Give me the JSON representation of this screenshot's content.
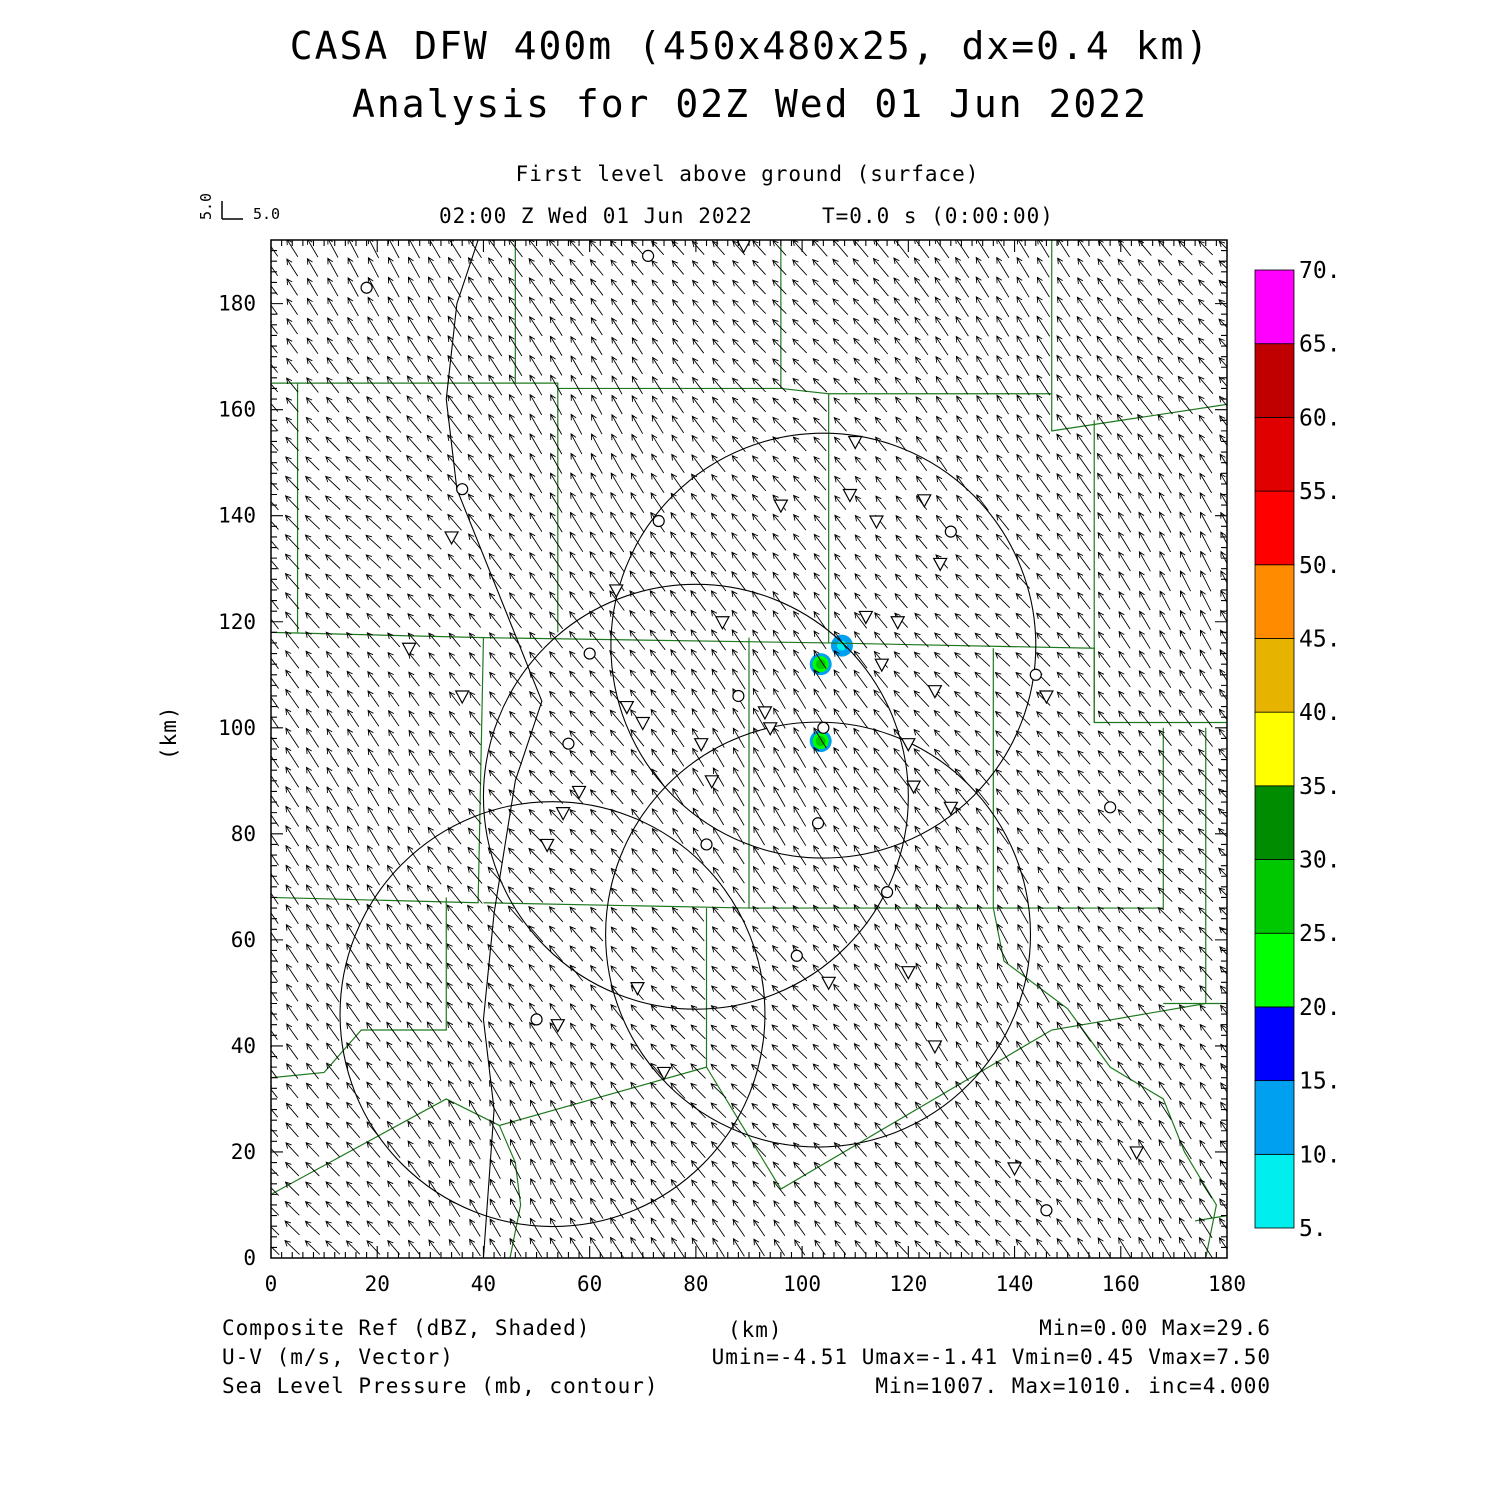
{
  "title": {
    "line1": "CASA DFW 400m (450x480x25, dx=0.4 km)",
    "line2": "Analysis for 02Z Wed 01 Jun 2022"
  },
  "subtitle": {
    "level": "First level above ground (surface)",
    "time": "02:00 Z Wed 01 Jun 2022",
    "tstamp": "T=0.0 s (0:00:00)",
    "vector_ref_v": "5.0",
    "vector_ref_u": "5.0"
  },
  "axes": {
    "x_unit": "(km)",
    "y_unit": "(km)",
    "x_ticks": [
      "0",
      "20",
      "40",
      "60",
      "80",
      "100",
      "120",
      "140",
      "160",
      "180"
    ],
    "y_ticks": [
      "0",
      "20",
      "40",
      "60",
      "80",
      "100",
      "120",
      "140",
      "160",
      "180"
    ],
    "x_range": [
      0,
      180
    ],
    "y_range": [
      0,
      192
    ]
  },
  "colorbar": {
    "labels": [
      "5.",
      "10.",
      "15.",
      "20.",
      "25.",
      "30.",
      "35.",
      "40.",
      "45.",
      "50.",
      "55.",
      "60.",
      "65.",
      "70."
    ],
    "colors": [
      "#00eeee",
      "#00a0f0",
      "#0000ff",
      "#00ff00",
      "#00c800",
      "#008c00",
      "#ffff00",
      "#e6b400",
      "#ff8c00",
      "#ff0000",
      "#e00000",
      "#c00000",
      "#ff00ff"
    ]
  },
  "legend": {
    "row1_left": "Composite Ref (dBZ, Shaded)",
    "row1_mid": "(km)",
    "row1_right": "Min=0.00 Max=29.6",
    "row2_left": "U-V (m/s, Vector)",
    "row2_right": "Umin=-4.51 Umax=-1.41 Vmin=0.45 Vmax=7.50",
    "row3_left": "Sea Level Pressure (mb, contour)",
    "row3_right": "Min=1007. Max=1010. inc=4.000"
  },
  "map_data": {
    "wind": {
      "u_mean": -3.0,
      "v_mean": 4.0
    },
    "reflectivity_cells": [
      {
        "x": 103.5,
        "y": 112,
        "dbz": 27
      },
      {
        "x": 103.5,
        "y": 97.5,
        "dbz": 29.6
      },
      {
        "x": 107.5,
        "y": 115.5,
        "dbz": 8
      }
    ],
    "radar_rings": [
      {
        "cx": 104,
        "cy": 115.5,
        "r": 40
      },
      {
        "cx": 80,
        "cy": 87,
        "r": 40
      },
      {
        "cx": 103,
        "cy": 61,
        "r": 40
      },
      {
        "cx": 53,
        "cy": 46,
        "r": 40
      }
    ],
    "isobar": [
      [
        39,
        192
      ],
      [
        35,
        180
      ],
      [
        33,
        162
      ],
      [
        35,
        145
      ],
      [
        45,
        120
      ],
      [
        51,
        105
      ],
      [
        46,
        90
      ],
      [
        42,
        65
      ],
      [
        40,
        45
      ],
      [
        42,
        28
      ],
      [
        40,
        0
      ]
    ],
    "county_lines": [
      [
        [
          0,
          165
        ],
        [
          46,
          165
        ],
        [
          46,
          192
        ]
      ],
      [
        [
          5,
          165
        ],
        [
          5,
          118
        ]
      ],
      [
        [
          46,
          165
        ],
        [
          54,
          165
        ],
        [
          54,
          118
        ]
      ],
      [
        [
          54,
          164
        ],
        [
          96,
          164
        ],
        [
          96,
          192
        ]
      ],
      [
        [
          96,
          164
        ],
        [
          105,
          163
        ],
        [
          105,
          116
        ]
      ],
      [
        [
          105,
          163
        ],
        [
          147,
          163
        ],
        [
          147,
          192
        ]
      ],
      [
        [
          147,
          163
        ],
        [
          147,
          156
        ],
        [
          180,
          161
        ]
      ],
      [
        [
          155,
          158
        ],
        [
          155,
          101
        ],
        [
          180,
          101
        ]
      ],
      [
        [
          0,
          118
        ],
        [
          40,
          117
        ],
        [
          105,
          116
        ],
        [
          155,
          115
        ],
        [
          155,
          101
        ]
      ],
      [
        [
          40,
          117
        ],
        [
          39,
          67
        ],
        [
          0,
          68
        ]
      ],
      [
        [
          40,
          67
        ],
        [
          90,
          66
        ],
        [
          90,
          117
        ]
      ],
      [
        [
          90,
          66
        ],
        [
          136,
          66
        ],
        [
          136,
          115
        ]
      ],
      [
        [
          136,
          66
        ],
        [
          168,
          66
        ],
        [
          168,
          100
        ]
      ],
      [
        [
          33,
          68
        ],
        [
          33,
          43
        ],
        [
          17,
          43
        ],
        [
          10,
          35
        ],
        [
          0,
          34
        ]
      ],
      [
        [
          0,
          12
        ],
        [
          33,
          30
        ],
        [
          43,
          25
        ],
        [
          82,
          36
        ],
        [
          82,
          66
        ]
      ],
      [
        [
          82,
          36
        ],
        [
          96,
          13
        ],
        [
          147,
          43
        ],
        [
          176,
          48
        ],
        [
          176,
          100
        ]
      ],
      [
        [
          168,
          48
        ],
        [
          180,
          48
        ]
      ],
      [
        [
          136,
          66
        ],
        [
          138,
          56
        ],
        [
          150,
          47
        ],
        [
          158,
          36
        ],
        [
          168,
          30
        ],
        [
          172,
          20
        ],
        [
          178,
          10
        ],
        [
          176,
          0
        ]
      ],
      [
        [
          43,
          25
        ],
        [
          46,
          18
        ],
        [
          47,
          10
        ],
        [
          45,
          0
        ]
      ],
      [
        [
          174,
          7
        ],
        [
          180,
          8
        ]
      ]
    ],
    "station_circles": [
      [
        18,
        183
      ],
      [
        71,
        189
      ],
      [
        36,
        145
      ],
      [
        73,
        139
      ],
      [
        128,
        137
      ],
      [
        60,
        114
      ],
      [
        88,
        106
      ],
      [
        104,
        100
      ],
      [
        56,
        97
      ],
      [
        103,
        82
      ],
      [
        82,
        78
      ],
      [
        116,
        69
      ],
      [
        99,
        57
      ],
      [
        50,
        45
      ],
      [
        144,
        110
      ],
      [
        158,
        85
      ],
      [
        146,
        9
      ]
    ],
    "station_triangles": [
      [
        89,
        191
      ],
      [
        110,
        154
      ],
      [
        109,
        144
      ],
      [
        123,
        143
      ],
      [
        96,
        142
      ],
      [
        114,
        139
      ],
      [
        34,
        136
      ],
      [
        126,
        131
      ],
      [
        65,
        126
      ],
      [
        112,
        121
      ],
      [
        85,
        120
      ],
      [
        118,
        120
      ],
      [
        26,
        115
      ],
      [
        115,
        112
      ],
      [
        67,
        104
      ],
      [
        93,
        103
      ],
      [
        70,
        101
      ],
      [
        36,
        106
      ],
      [
        94,
        100
      ],
      [
        81,
        97
      ],
      [
        120,
        97
      ],
      [
        125,
        107
      ],
      [
        146,
        106
      ],
      [
        58,
        88
      ],
      [
        55,
        84
      ],
      [
        52,
        78
      ],
      [
        83,
        90
      ],
      [
        121,
        89
      ],
      [
        128,
        85
      ],
      [
        105,
        52
      ],
      [
        120,
        54
      ],
      [
        69,
        51
      ],
      [
        54,
        44
      ],
      [
        125,
        40
      ],
      [
        74,
        35
      ],
      [
        140,
        17
      ],
      [
        163,
        20
      ]
    ]
  }
}
